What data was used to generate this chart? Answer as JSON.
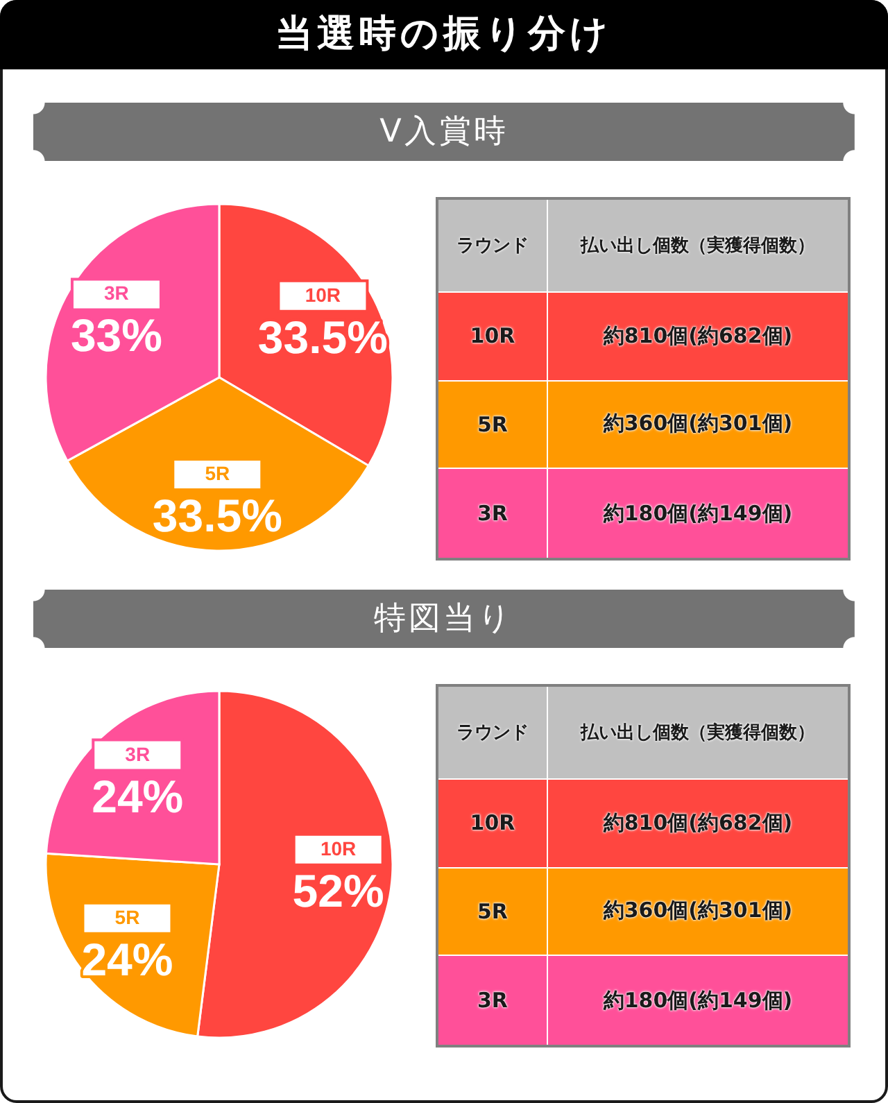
{
  "chart_data": [
    {
      "type": "other",
      "title": "当選時の振り分け"
    },
    {
      "type": "pie",
      "title": "V入賞時",
      "categories": [
        "10R",
        "5R",
        "3R"
      ],
      "values": [
        33.5,
        33.5,
        33
      ],
      "colors": [
        "#ff4640",
        "#ff9900",
        "#ff5099"
      ],
      "value_labels": [
        "33.5%",
        "33.5%",
        "33%"
      ]
    },
    {
      "type": "other",
      "annotations": [
        "ラウンド",
        "払い出し個数（実獲得個数）",
        "10R",
        "約810個(約682個)",
        "5R",
        "約360個(約301個)",
        "3R",
        "約180個(約149個)"
      ],
      "colors": [
        "#c0c0c0",
        "#ff4640",
        "#ff9900",
        "#ff5099"
      ]
    },
    {
      "type": "pie",
      "title": "特図当り",
      "categories": [
        "10R",
        "5R",
        "3R"
      ],
      "values": [
        52,
        24,
        24
      ],
      "colors": [
        "#ff4640",
        "#ff9900",
        "#ff5099"
      ],
      "value_labels": [
        "52%",
        "24%",
        "24%"
      ]
    },
    {
      "type": "other",
      "annotations": [
        "ラウンド",
        "払い出し個数（実獲得個数）",
        "10R",
        "約810個(約682個)",
        "5R",
        "約360個(約301個)",
        "3R",
        "約180個(約149個)"
      ],
      "colors": [
        "#c0c0c0",
        "#ff4640",
        "#ff9900",
        "#ff5099"
      ]
    }
  ]
}
